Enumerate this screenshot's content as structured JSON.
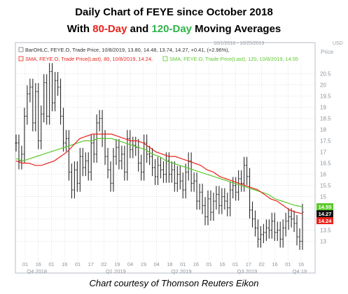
{
  "header": {
    "title_line1": "Daily Chart of FEYE since October 2018",
    "title_line2_prefix": "With ",
    "title_line2_red": "80-Day",
    "title_line2_mid": " and ",
    "title_line2_green": "120-Day",
    "title_line2_suffix": " Moving Averages"
  },
  "toolbar": {
    "date_range": "10/1/2018 - 10/25/2019",
    "units": "USD",
    "price_label": "Price"
  },
  "legend": {
    "line1": "BarOHLC, FEYE.O, Trade Price, 10/8/2019, 13.80, 14.48, 13.74, 14.27, +0.41, (+2.96%),",
    "line2a": "SMA, FEYE.O, Trade Price(Last), 80, 10/8/2019, 14.24,",
    "line2b": "SMA, FEYE.O, Trade Price(Last), 120, 10/8/2019, 14.55"
  },
  "credit": "Chart courtesy of Thomson Reuters Eikon",
  "colors": {
    "price": "#2b2b2b",
    "sma80": "#e8221b",
    "sma120": "#5cc92c",
    "label_price": "#111111",
    "grid": "#c4cbd4"
  },
  "chart_data": {
    "type": "line",
    "title": "Daily Chart of FEYE since October 2018",
    "ylim": [
      12.3,
      20.8
    ],
    "y_ticks": [
      13,
      13.5,
      14,
      14.5,
      15,
      15.5,
      16,
      16.5,
      17,
      17.5,
      18,
      18.5,
      19,
      19.5,
      20,
      20.5
    ],
    "x_ticks": [
      "01",
      "16",
      "01",
      "16",
      "01",
      "17",
      "02",
      "19",
      "04",
      "19",
      "04",
      "18",
      "01",
      "16",
      "01",
      "16",
      "01",
      "17",
      "02",
      "16",
      "01",
      "16"
    ],
    "periods": [
      "Q4 2018",
      "Q1 2019",
      "Q2 2019",
      "Q3 2019",
      "Q4 19"
    ],
    "end_labels": {
      "sma120": "14.55",
      "price": "14.27",
      "sma80": "14.24"
    },
    "series": [
      {
        "name": "BarOHLC, FEYE.O, Trade Price",
        "style": "ohlc",
        "values": [
          17.4,
          16.6,
          16.9,
          18.6,
          19.6,
          19.9,
          18.3,
          19.7,
          17.5,
          18.7,
          20.1,
          18.6,
          20.6,
          19.2,
          20.2,
          19.9,
          18.6,
          17.4,
          17.6,
          16.1,
          15.3,
          16.2,
          15.6,
          16.8,
          16.3,
          16.6,
          16.1,
          17.4,
          16.9,
          18.3,
          18.5,
          17.6,
          16.8,
          16.2,
          15.6,
          16.8,
          17.2,
          16.6,
          16.9,
          16.1,
          17.6,
          17.1,
          17.3,
          17.2,
          16.5,
          16.1,
          17.4,
          16.9,
          16.8,
          16.3,
          15.9,
          16.4,
          16.2,
          16.0,
          16.6,
          16.0,
          16.2,
          15.6,
          16.0,
          15.7,
          15.3,
          16.1,
          16.6,
          15.6,
          15.7,
          14.8,
          15.2,
          14.6,
          14.1,
          14.9,
          14.3,
          14.8,
          15.1,
          14.6,
          15.0,
          14.8,
          14.5,
          15.3,
          15.5,
          15.2,
          15.8,
          15.6,
          16.4,
          15.9,
          14.4,
          14.0,
          13.6,
          13.1,
          13.3,
          13.4,
          13.6,
          13.5,
          13.9,
          13.4,
          13.5,
          13.1,
          13.6,
          13.9,
          14.1,
          14.0,
          13.8,
          13.2,
          13.0,
          14.3
        ]
      },
      {
        "name": "SMA, FEYE.O, Trade Price(Last), 80",
        "values": [
          16.6,
          16.5,
          16.5,
          16.4,
          16.4,
          16.5,
          16.6,
          16.8,
          17.0,
          17.3,
          17.6,
          17.7,
          17.8,
          17.8,
          17.8,
          17.8,
          17.7,
          17.6,
          17.5,
          17.5,
          17.4,
          17.2,
          17.0,
          16.9,
          16.8,
          16.8,
          16.7,
          16.6,
          16.5,
          16.4,
          16.2,
          16.1,
          15.9,
          15.8,
          15.7,
          15.6,
          15.5,
          15.4,
          15.3,
          15.1,
          14.9,
          14.8,
          14.6,
          14.4,
          14.3,
          14.24
        ]
      },
      {
        "name": "SMA, FEYE.O, Trade Price(Last), 120",
        "values": [
          16.7,
          16.6,
          16.7,
          16.8,
          16.9,
          17.0,
          17.1,
          17.2,
          17.3,
          17.4,
          17.5,
          17.5,
          17.6,
          17.6,
          17.6,
          17.5,
          17.4,
          17.3,
          17.2,
          17.1,
          16.9,
          16.8,
          16.6,
          16.5,
          16.4,
          16.3,
          16.2,
          16.1,
          16.0,
          15.9,
          15.8,
          15.7,
          15.6,
          15.5,
          15.4,
          15.3,
          15.2,
          15.1,
          14.9,
          14.8,
          14.7,
          14.6,
          14.55
        ]
      }
    ]
  }
}
